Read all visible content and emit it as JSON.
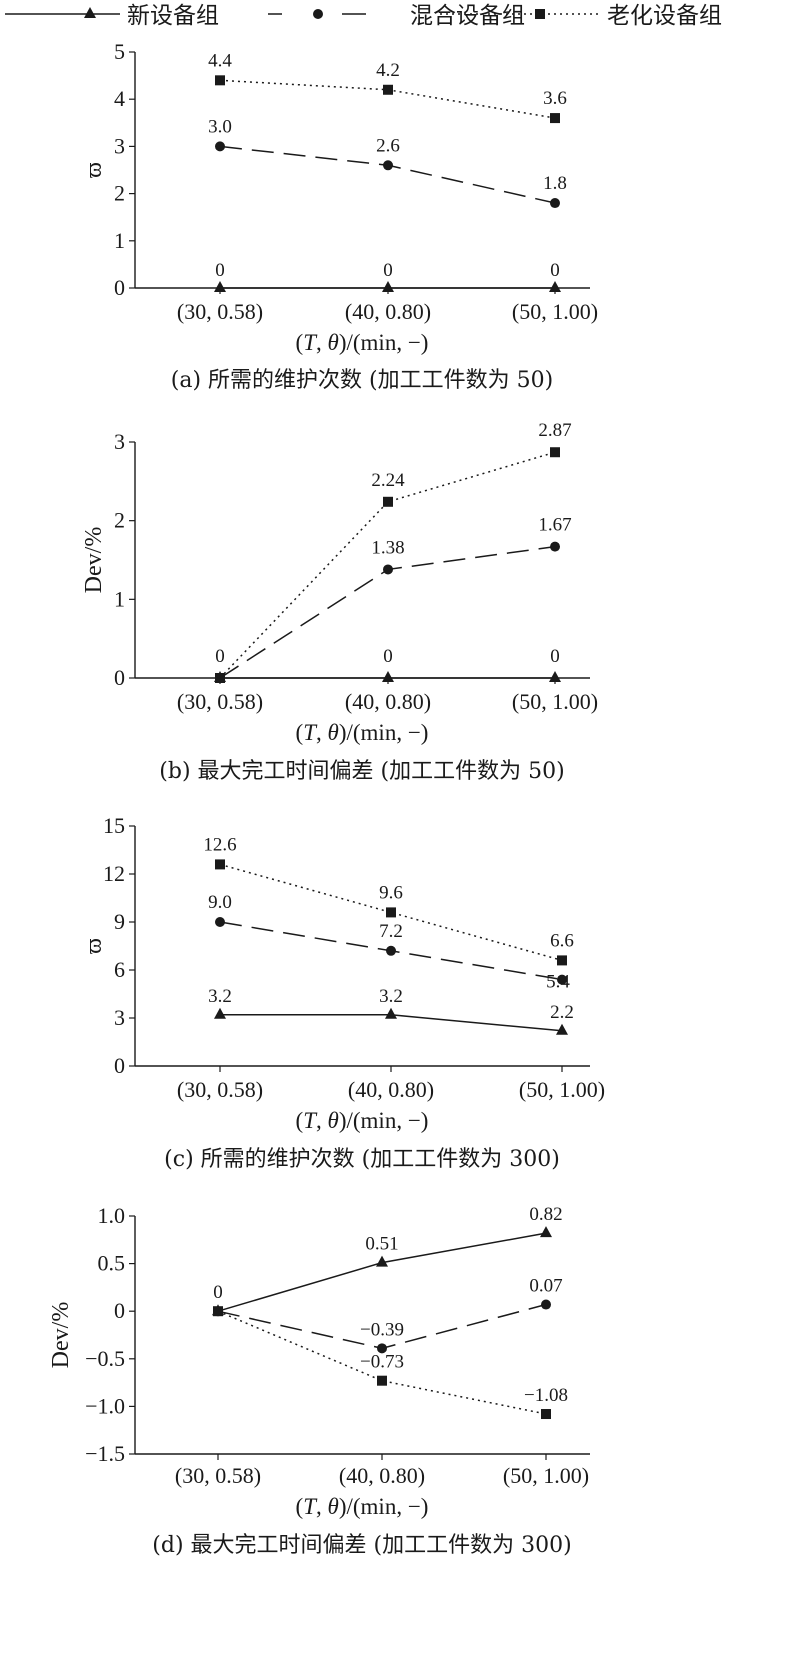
{
  "legend": [
    {
      "name": "新设备组",
      "marker": "triangle",
      "dash": "solid"
    },
    {
      "name": "混合设备组",
      "marker": "circle",
      "dash": "dashed"
    },
    {
      "name": "老化设备组",
      "marker": "square",
      "dash": "dotted"
    }
  ],
  "colors": {
    "ink": "#1a1a1a",
    "background": "#ffffff"
  },
  "chart_data": [
    {
      "type": "line",
      "caption": "(a) 所需的维护次数 (加工工件数为 50)",
      "ylabel": "ϖ",
      "xlabel": "(T, θ)/(min, −)",
      "categories": [
        "(30, 0.58)",
        "(40, 0.80)",
        "(50, 1.00)"
      ],
      "ylim": [
        0,
        5
      ],
      "yticks": [
        "0",
        "1",
        "2",
        "3",
        "4",
        "5"
      ],
      "series": [
        {
          "name": "新设备组",
          "values": [
            0,
            0,
            0
          ],
          "labels": [
            "0",
            "0",
            "0"
          ]
        },
        {
          "name": "混合设备组",
          "values": [
            3.0,
            2.6,
            1.8
          ],
          "labels": [
            "3.0",
            "2.6",
            "1.8"
          ]
        },
        {
          "name": "老化设备组",
          "values": [
            4.4,
            4.2,
            3.6
          ],
          "labels": [
            "4.4",
            "4.2",
            "3.6"
          ]
        }
      ]
    },
    {
      "type": "line",
      "caption": "(b) 最大完工时间偏差 (加工工件数为 50)",
      "ylabel": "Dev/%",
      "xlabel": "(T, θ)/(min, −)",
      "categories": [
        "(30, 0.58)",
        "(40, 0.80)",
        "(50, 1.00)"
      ],
      "ylim": [
        0,
        3
      ],
      "yticks": [
        "0",
        "1",
        "2",
        "3"
      ],
      "series": [
        {
          "name": "新设备组",
          "values": [
            0,
            0,
            0
          ],
          "labels": [
            "0",
            "0",
            "0"
          ]
        },
        {
          "name": "混合设备组",
          "values": [
            0,
            1.38,
            1.67
          ],
          "labels": [
            "",
            "1.38",
            "1.67"
          ]
        },
        {
          "name": "老化设备组",
          "values": [
            0,
            2.24,
            2.87
          ],
          "labels": [
            "",
            "2.24",
            "2.87"
          ]
        }
      ]
    },
    {
      "type": "line",
      "caption": "(c) 所需的维护次数 (加工工件数为 300)",
      "ylabel": "ϖ",
      "xlabel": "(T, θ)/(min, −)",
      "categories": [
        "(30, 0.58)",
        "(40, 0.80)",
        "(50, 1.00)"
      ],
      "ylim": [
        0,
        15
      ],
      "yticks": [
        "0",
        "3",
        "6",
        "9",
        "12",
        "15"
      ],
      "series": [
        {
          "name": "新设备组",
          "values": [
            3.2,
            3.2,
            2.2
          ],
          "labels": [
            "3.2",
            "3.2",
            "2.2"
          ]
        },
        {
          "name": "混合设备组",
          "values": [
            9.0,
            7.2,
            5.4
          ],
          "labels": [
            "9.0",
            "7.2",
            "5.4"
          ]
        },
        {
          "name": "老化设备组",
          "values": [
            12.6,
            9.6,
            6.6
          ],
          "labels": [
            "12.6",
            "9.6",
            "6.6"
          ]
        }
      ]
    },
    {
      "type": "line",
      "caption": "(d) 最大完工时间偏差 (加工工件数为 300)",
      "ylabel": "Dev/%",
      "xlabel": "(T, θ)/(min, −)",
      "categories": [
        "(30, 0.58)",
        "(40, 0.80)",
        "(50, 1.00)"
      ],
      "ylim": [
        -1.5,
        1.0
      ],
      "yticks": [
        "−1.5",
        "−1.0",
        "−0.5",
        "0",
        "0.5",
        "1.0"
      ],
      "series": [
        {
          "name": "新设备组",
          "values": [
            0,
            0.51,
            0.82
          ],
          "labels": [
            "0",
            "0.51",
            "0.82"
          ]
        },
        {
          "name": "混合设备组",
          "values": [
            0,
            -0.39,
            0.07
          ],
          "labels": [
            "",
            "−0.39",
            "0.07"
          ]
        },
        {
          "name": "老化设备组",
          "values": [
            0,
            -0.73,
            -1.08
          ],
          "labels": [
            "",
            "−0.73",
            "−1.08"
          ]
        }
      ]
    }
  ]
}
